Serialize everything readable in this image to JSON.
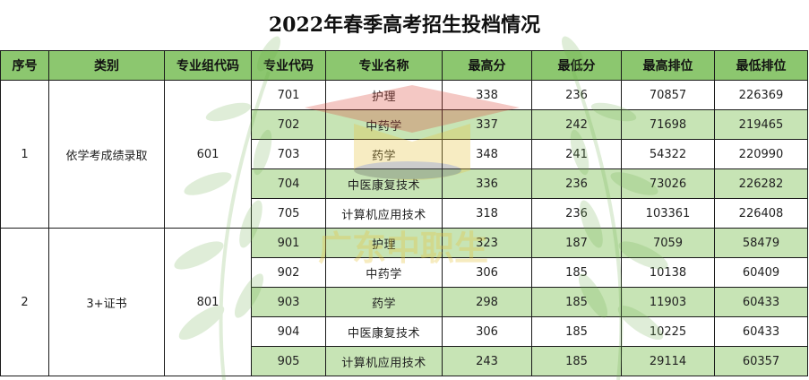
{
  "title": "2022年春季高考招生投档情况",
  "watermark": {
    "text": "广东中职生"
  },
  "colors": {
    "header_bg": "#8cc76f",
    "row_shade": "#c7e4b5",
    "grid": "#1a1a1a"
  },
  "table": {
    "headers": [
      "序号",
      "类别",
      "专业组代码",
      "专业代码",
      "专业名称",
      "最高分",
      "最低分",
      "最高排位",
      "最低排位"
    ],
    "groups": [
      {
        "seq": "1",
        "category": "依学考成绩录取",
        "group_code": "601",
        "majors": [
          {
            "code": "701",
            "name": "护理",
            "max_score": "338",
            "min_score": "236",
            "max_rank": "70857",
            "min_rank": "226369"
          },
          {
            "code": "702",
            "name": "中药学",
            "max_score": "337",
            "min_score": "242",
            "max_rank": "71698",
            "min_rank": "219465"
          },
          {
            "code": "703",
            "name": "药学",
            "max_score": "348",
            "min_score": "241",
            "max_rank": "54322",
            "min_rank": "220990"
          },
          {
            "code": "704",
            "name": "中医康复技术",
            "max_score": "336",
            "min_score": "236",
            "max_rank": "73026",
            "min_rank": "226282"
          },
          {
            "code": "705",
            "name": "计算机应用技术",
            "max_score": "318",
            "min_score": "236",
            "max_rank": "103361",
            "min_rank": "226408"
          }
        ]
      },
      {
        "seq": "2",
        "category": "3+证书",
        "group_code": "801",
        "majors": [
          {
            "code": "901",
            "name": "护理",
            "max_score": "323",
            "min_score": "187",
            "max_rank": "7059",
            "min_rank": "58479"
          },
          {
            "code": "902",
            "name": "中药学",
            "max_score": "306",
            "min_score": "185",
            "max_rank": "10138",
            "min_rank": "60409"
          },
          {
            "code": "903",
            "name": "药学",
            "max_score": "298",
            "min_score": "185",
            "max_rank": "11903",
            "min_rank": "60433"
          },
          {
            "code": "904",
            "name": "中医康复技术",
            "max_score": "306",
            "min_score": "185",
            "max_rank": "10225",
            "min_rank": "60433"
          },
          {
            "code": "905",
            "name": "计算机应用技术",
            "max_score": "243",
            "min_score": "185",
            "max_rank": "29114",
            "min_rank": "60357"
          }
        ]
      }
    ]
  }
}
